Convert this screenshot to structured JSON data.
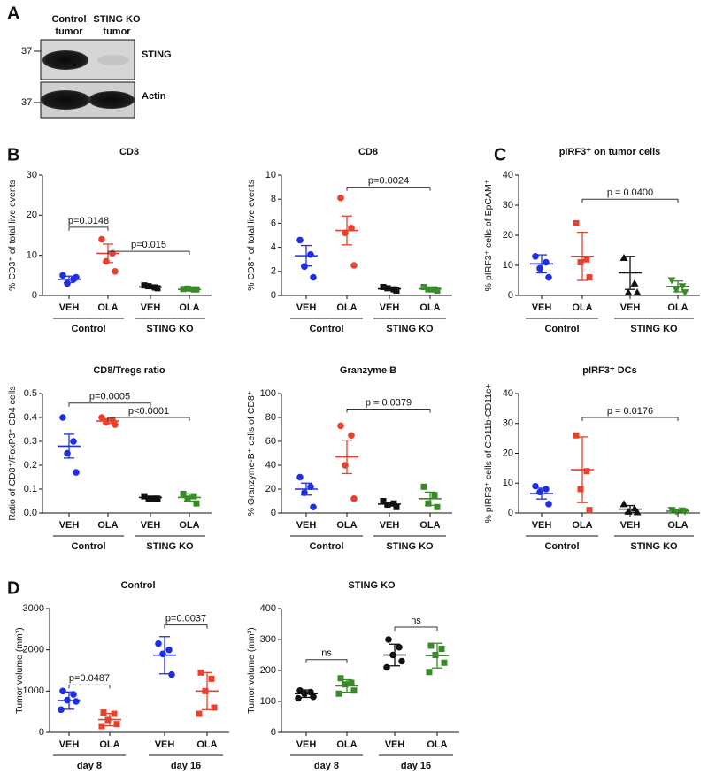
{
  "panels": [
    "A",
    "B",
    "C",
    "D"
  ],
  "blot": {
    "columns": [
      [
        "Control",
        "tumor"
      ],
      [
        "STING KO",
        "tumor"
      ]
    ],
    "rows": [
      "STING",
      "Actin"
    ],
    "markers": [
      "37",
      "37"
    ]
  },
  "chart_data": [
    {
      "type": "strip",
      "title": "CD3",
      "ylabel": "% CD3⁺ of total live events",
      "categories": [
        "VEH",
        "OLA",
        "VEH",
        "OLA"
      ],
      "group_labels": [
        "Control",
        "STING KO"
      ],
      "ylim": [
        0,
        30
      ],
      "yticks": [
        0,
        10,
        20,
        30
      ],
      "groups": [
        {
          "color": "#1f2fe0",
          "marker": "circle",
          "points": [
            5,
            4,
            3,
            4.5
          ],
          "mean": 4,
          "error": 0.8
        },
        {
          "color": "#e8412c",
          "marker": "circle",
          "points": [
            14,
            10.5,
            8.5,
            6
          ],
          "mean": 10.5,
          "error": 2.3
        },
        {
          "color": "#111111",
          "marker": "square",
          "points": [
            2.5,
            2,
            2.3,
            1.8
          ],
          "mean": 2.1,
          "error": 0.4
        },
        {
          "color": "#3a8a2a",
          "marker": "square",
          "points": [
            1.6,
            1.5,
            1.7,
            1.5
          ],
          "mean": 1.5,
          "error": 0.2
        }
      ],
      "annotations": [
        {
          "text": "p=0.0148",
          "from": 0,
          "to": 1,
          "y": 17
        },
        {
          "text": "p=0.015",
          "from": 1,
          "to": 3,
          "y": 11
        }
      ]
    },
    {
      "type": "strip",
      "title": "CD8",
      "ylabel": "% CD8⁺ of total live events",
      "categories": [
        "VEH",
        "OLA",
        "VEH",
        "OLA"
      ],
      "group_labels": [
        "Control",
        "STING KO"
      ],
      "ylim": [
        0,
        10
      ],
      "yticks": [
        0,
        2,
        4,
        6,
        8,
        10
      ],
      "groups": [
        {
          "color": "#1f2fe0",
          "marker": "circle",
          "points": [
            4.6,
            3.4,
            2.4,
            1.5
          ],
          "mean": 3.3,
          "error": 0.85
        },
        {
          "color": "#e8412c",
          "marker": "circle",
          "points": [
            8.1,
            5.6,
            5.2,
            2.5
          ],
          "mean": 5.4,
          "error": 1.2
        },
        {
          "color": "#111111",
          "marker": "square",
          "points": [
            0.7,
            0.5,
            0.6,
            0.4
          ],
          "mean": 0.55,
          "error": 0.1
        },
        {
          "color": "#3a8a2a",
          "marker": "square",
          "points": [
            0.7,
            0.5,
            0.5,
            0.4
          ],
          "mean": 0.55,
          "error": 0.1
        }
      ],
      "annotations": [
        {
          "text": "p=0.0024",
          "from": 1,
          "to": 3,
          "y": 9
        }
      ]
    },
    {
      "type": "strip",
      "title": "pIRF3⁺ on tumor cells",
      "ylabel": "% pIRF3⁺ cells of EpCAM⁺",
      "categories": [
        "VEH",
        "OLA",
        "VEH",
        "OLA"
      ],
      "group_labels": [
        "Control",
        "STING KO"
      ],
      "ylim": [
        0,
        40
      ],
      "yticks": [
        0,
        10,
        20,
        30,
        40
      ],
      "groups": [
        {
          "color": "#1f2fe0",
          "marker": "circle",
          "points": [
            13,
            11,
            9,
            6
          ],
          "mean": 10.5,
          "error": 3
        },
        {
          "color": "#e8412c",
          "marker": "square",
          "points": [
            24,
            12,
            11,
            6
          ],
          "mean": 13,
          "error": 8
        },
        {
          "color": "#111111",
          "marker": "triangle",
          "points": [
            12.5,
            4,
            1,
            1
          ],
          "mean": 7.5,
          "error": 5.5
        },
        {
          "color": "#3a8a2a",
          "marker": "triangle-down",
          "points": [
            5,
            3,
            2,
            1
          ],
          "mean": 3,
          "error": 1.8
        }
      ],
      "annotations": [
        {
          "text": "p = 0.0400",
          "from": 1,
          "to": 3,
          "y": 32
        }
      ]
    },
    {
      "type": "strip",
      "title": "CD8/Tregs ratio",
      "ylabel": "Ratio of CD8⁺/FoxP3⁺ CD4 cells",
      "categories": [
        "VEH",
        "OLA",
        "VEH",
        "OLA"
      ],
      "group_labels": [
        "Control",
        "STING KO"
      ],
      "ylim": [
        0,
        0.5
      ],
      "yticks": [
        {
          "value": 0,
          "label": "0.0"
        },
        0.1,
        0.2,
        0.3,
        0.4,
        0.5
      ],
      "groups": [
        {
          "color": "#1f2fe0",
          "marker": "circle",
          "points": [
            0.4,
            0.3,
            0.25,
            0.17
          ],
          "mean": 0.28,
          "error": 0.05
        },
        {
          "color": "#e8412c",
          "marker": "circle",
          "points": [
            0.4,
            0.39,
            0.38,
            0.37
          ],
          "mean": 0.385,
          "error": 0.01
        },
        {
          "color": "#111111",
          "marker": "square",
          "points": [
            0.07,
            0.06,
            0.06,
            0.06
          ],
          "mean": 0.065,
          "error": 0.005
        },
        {
          "color": "#3a8a2a",
          "marker": "square",
          "points": [
            0.08,
            0.07,
            0.06,
            0.04
          ],
          "mean": 0.065,
          "error": 0.015
        }
      ],
      "annotations": [
        {
          "text": "p=0.0005",
          "from": 0,
          "to": 2,
          "y": 0.46
        },
        {
          "text": "p<0.0001",
          "from": 1,
          "to": 3,
          "y": 0.4
        }
      ]
    },
    {
      "type": "strip",
      "title": "Granzyme B",
      "ylabel": "% Granzyme-B⁺ cells of CD8⁺",
      "categories": [
        "VEH",
        "OLA",
        "VEH",
        "OLA"
      ],
      "group_labels": [
        "Control",
        "STING KO"
      ],
      "ylim": [
        0,
        100
      ],
      "yticks": [
        0,
        20,
        40,
        60,
        80,
        100
      ],
      "groups": [
        {
          "color": "#1f2fe0",
          "marker": "circle",
          "points": [
            30,
            22,
            17,
            5
          ],
          "mean": 20,
          "error": 5
        },
        {
          "color": "#e8412c",
          "marker": "circle",
          "points": [
            73,
            65,
            40,
            12
          ],
          "mean": 47,
          "error": 14
        },
        {
          "color": "#111111",
          "marker": "square",
          "points": [
            10,
            8,
            7,
            5
          ],
          "mean": 7.5,
          "error": 1.5
        },
        {
          "color": "#3a8a2a",
          "marker": "square",
          "points": [
            22,
            15,
            8,
            5
          ],
          "mean": 12,
          "error": 5.5
        }
      ],
      "annotations": [
        {
          "text": "p = 0.0379",
          "from": 1,
          "to": 3,
          "y": 87
        }
      ]
    },
    {
      "type": "strip",
      "title": "pIRF3⁺ DCs",
      "ylabel": "% pIRF3⁺ cells of CD11b-CD11c+",
      "categories": [
        "VEH",
        "OLA",
        "VEH",
        "OLA"
      ],
      "group_labels": [
        "Control",
        "STING KO"
      ],
      "ylim": [
        0,
        40
      ],
      "yticks": [
        0,
        10,
        20,
        30,
        40
      ],
      "groups": [
        {
          "color": "#1f2fe0",
          "marker": "circle",
          "points": [
            9,
            8,
            7,
            3
          ],
          "mean": 6.5,
          "error": 1.8
        },
        {
          "color": "#e8412c",
          "marker": "square",
          "points": [
            26,
            14,
            8,
            1
          ],
          "mean": 14.5,
          "error": 11
        },
        {
          "color": "#111111",
          "marker": "triangle",
          "points": [
            3,
            1.5,
            0.5,
            0.3
          ],
          "mean": 1.3,
          "error": 1.2
        },
        {
          "color": "#3a8a2a",
          "marker": "triangle-down",
          "points": [
            1,
            0.8,
            0.5,
            0.5
          ],
          "mean": 0.6,
          "error": 0.3
        }
      ],
      "annotations": [
        {
          "text": "p = 0.0176",
          "from": 1,
          "to": 3,
          "y": 32
        }
      ]
    },
    {
      "type": "strip",
      "title": "Control",
      "ylabel": "Tumor volume (mm³)",
      "categories": [
        "VEH",
        "OLA",
        "VEH",
        "OLA"
      ],
      "group_labels": [
        "day 8",
        "day 16"
      ],
      "ylim": [
        0,
        3000
      ],
      "yticks": [
        0,
        1000,
        2000,
        3000
      ],
      "groups": [
        {
          "color": "#1f2fe0",
          "marker": "circle",
          "points": [
            1000,
            920,
            780,
            750,
            550
          ],
          "mean": 770,
          "error": 210
        },
        {
          "color": "#e8412c",
          "marker": "square",
          "points": [
            480,
            450,
            300,
            200,
            150
          ],
          "mean": 310,
          "error": 150
        },
        {
          "color": "#1f2fe0",
          "marker": "circle",
          "points": [
            2150,
            2000,
            1900,
            1400
          ],
          "mean": 1870,
          "error": 450
        },
        {
          "color": "#e8412c",
          "marker": "square",
          "points": [
            1450,
            1300,
            1000,
            600,
            450
          ],
          "mean": 1000,
          "error": 450
        }
      ],
      "annotations": [
        {
          "text": "p=0.0487",
          "from": 0,
          "to": 1,
          "y": 1150
        },
        {
          "text": "p=0.0037",
          "from": 2,
          "to": 3,
          "y": 2600
        }
      ]
    },
    {
      "type": "strip",
      "title": "STING KO",
      "ylabel": "Tumor volume (mm³)",
      "categories": [
        "VEH",
        "OLA",
        "VEH",
        "OLA"
      ],
      "group_labels": [
        "day 8",
        "day 16"
      ],
      "ylim": [
        0,
        400
      ],
      "yticks": [
        0,
        100,
        200,
        300,
        400
      ],
      "groups": [
        {
          "color": "#111111",
          "marker": "circle",
          "points": [
            135,
            130,
            125,
            115,
            110
          ],
          "mean": 125,
          "error": 12
        },
        {
          "color": "#3a8a2a",
          "marker": "square",
          "points": [
            175,
            160,
            155,
            135,
            125
          ],
          "mean": 150,
          "error": 20
        },
        {
          "color": "#111111",
          "marker": "circle",
          "points": [
            300,
            275,
            250,
            230,
            210
          ],
          "mean": 250,
          "error": 35
        },
        {
          "color": "#3a8a2a",
          "marker": "square",
          "points": [
            280,
            270,
            250,
            225,
            195
          ],
          "mean": 248,
          "error": 40
        }
      ],
      "annotations": [
        {
          "text": "ns",
          "from": 0,
          "to": 1,
          "y": 235
        },
        {
          "text": "ns",
          "from": 2,
          "to": 3,
          "y": 340
        }
      ]
    }
  ]
}
